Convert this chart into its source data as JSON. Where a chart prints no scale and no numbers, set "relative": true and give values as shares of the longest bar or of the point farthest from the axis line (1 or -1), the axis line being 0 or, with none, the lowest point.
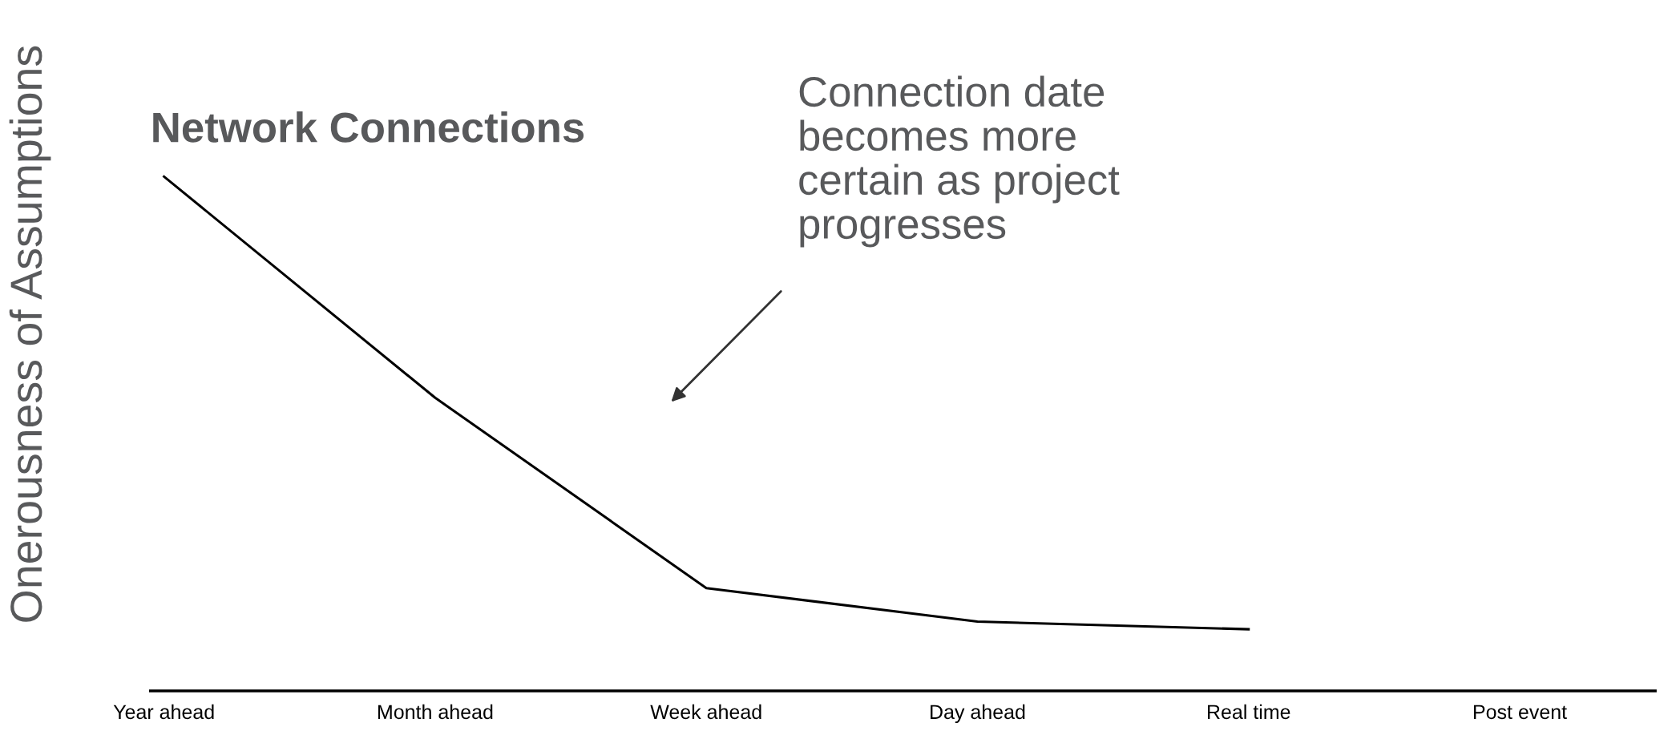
{
  "chart_data": {
    "type": "line",
    "title": "Network Connections",
    "ylabel": "Onerousness of Assumptions",
    "categories": [
      "Year ahead",
      "Month ahead",
      "Week ahead",
      "Day ahead",
      "Real time",
      "Post event"
    ],
    "relative": true,
    "series": [
      {
        "color": "#000000",
        "values": [
          1.0,
          0.57,
          0.2,
          0.135,
          0.12,
          null
        ]
      }
    ],
    "annotations": [
      "Connection date\nbecomes more\ncertain as project\nprogresses"
    ],
    "grid": false,
    "legend": false,
    "marker": "none",
    "line_style": "solid"
  }
}
